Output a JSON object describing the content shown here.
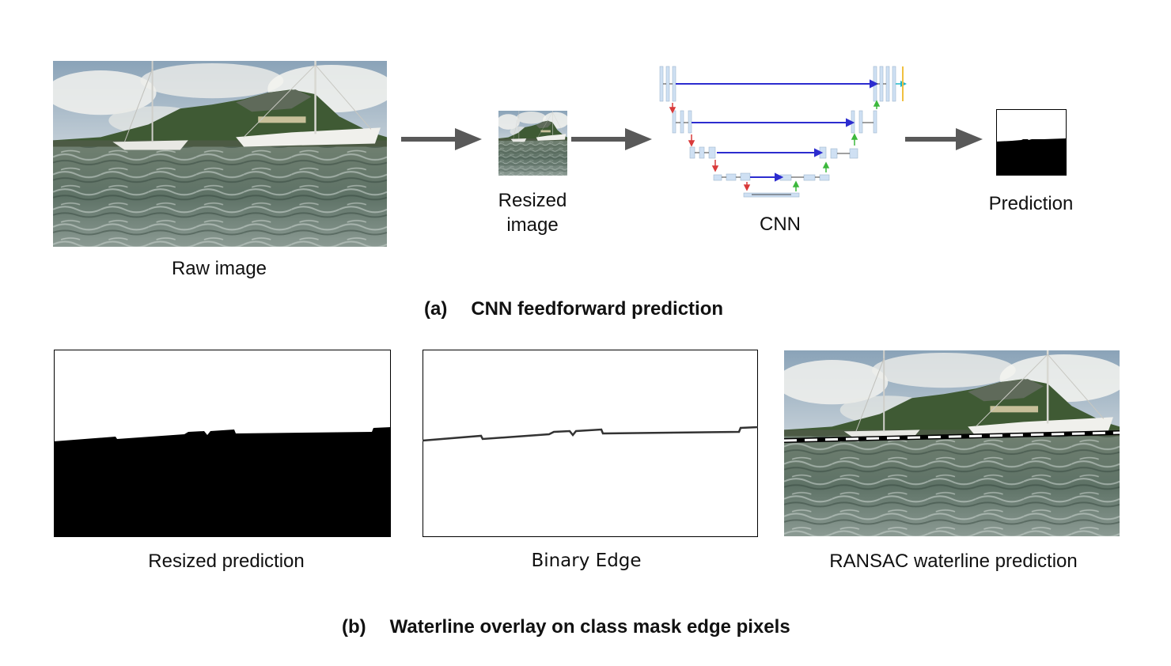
{
  "part_a": {
    "raw_label": "Raw image",
    "resized_label_line1": "Resized",
    "resized_label_line2": "image",
    "cnn_label": "CNN",
    "prediction_label": "Prediction",
    "caption_tag": "(a)",
    "caption_text": "CNN feedforward prediction"
  },
  "part_b": {
    "resized_pred_label": "Resized prediction",
    "binary_edge_label": "Binary Edge",
    "ransac_label": "RANSAC waterline prediction",
    "caption_tag": "(b)",
    "caption_text": "Waterline overlay on class mask edge pixels"
  },
  "colors": {
    "arrow": "#595959",
    "skip_connection": "#2c2ccf",
    "downsample": "#d93a3a",
    "upsample": "#3cb83c",
    "layer_block": "#cfe0f3",
    "mask_black": "#000000"
  }
}
